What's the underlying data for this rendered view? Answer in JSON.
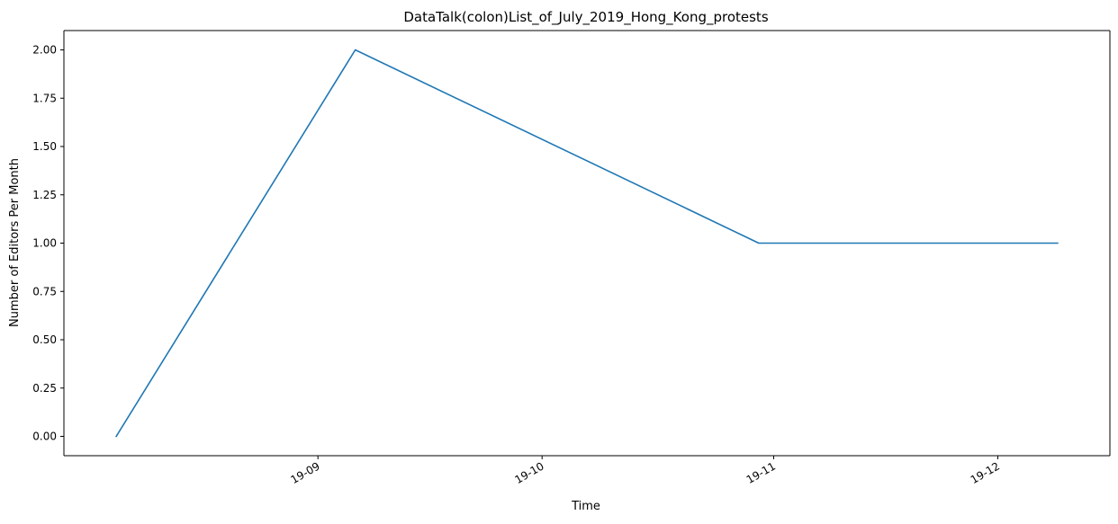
{
  "chart_data": {
    "type": "line",
    "title": "DataTalk(colon)List_of_July_2019_Hong_Kong_protests",
    "xlabel": "Time",
    "ylabel": "Number of Editors Per Month",
    "x_tick_labels": [
      "19-09",
      "19-10",
      "19-11",
      "19-12"
    ],
    "y_tick_labels": [
      "0.00",
      "0.25",
      "0.50",
      "0.75",
      "1.00",
      "1.25",
      "1.50",
      "1.75",
      "2.00"
    ],
    "y_ticks": [
      0,
      0.25,
      0.5,
      0.75,
      1.0,
      1.25,
      1.5,
      1.75,
      2.0
    ],
    "x_ticks": [
      "2019-09-01",
      "2019-10-01",
      "2019-11-01",
      "2019-12-01"
    ],
    "xlim": [
      "2019-07-29",
      "2019-12-16"
    ],
    "ylim": [
      -0.1,
      2.1
    ],
    "grid": false,
    "series": [
      {
        "color": "#1f77b4",
        "x": [
          "2019-08-05",
          "2019-09-06",
          "2019-10-30",
          "2019-12-09"
        ],
        "values": [
          0,
          2,
          1,
          1
        ]
      }
    ]
  }
}
